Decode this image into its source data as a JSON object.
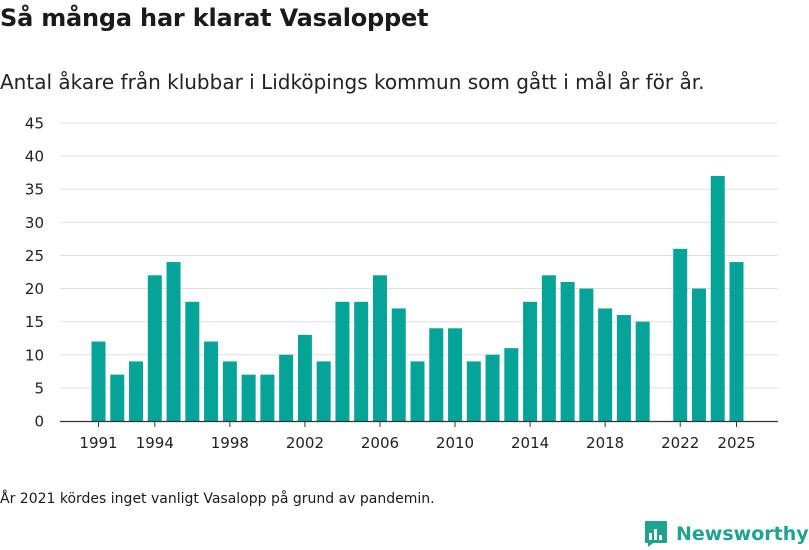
{
  "header": {
    "title": "Så många har klarat Vasaloppet",
    "subtitle": "Antal åkare från klubbar i Lidköpings kommun som gått i mål år för år."
  },
  "footnote": "År 2021 kördes inget vanligt Vasalopp på grund av pandemin.",
  "brand": {
    "name": "Newsworthy",
    "icon": "newsworthy-logo-icon",
    "color": "#1fa391"
  },
  "colors": {
    "bar": "#06a398",
    "grid": "#e0e0e0",
    "axis": "#333333"
  },
  "chart_data": {
    "type": "bar",
    "title": "Så många har klarat Vasaloppet",
    "subtitle": "Antal åkare från klubbar i Lidköpings kommun som gått i mål år för år.",
    "xlabel": "",
    "ylabel": "",
    "ylim": [
      0,
      45
    ],
    "yticks": [
      0,
      5,
      10,
      15,
      20,
      25,
      30,
      35,
      40,
      45
    ],
    "xticks": [
      1991,
      1994,
      1998,
      2002,
      2006,
      2010,
      2014,
      2018,
      2022,
      2025
    ],
    "x_range": [
      1991,
      2025
    ],
    "grid": true,
    "series": [
      {
        "name": "Antal åkare",
        "points": [
          {
            "year": 1991,
            "value": 12
          },
          {
            "year": 1992,
            "value": 7
          },
          {
            "year": 1993,
            "value": 9
          },
          {
            "year": 1994,
            "value": 22
          },
          {
            "year": 1995,
            "value": 24
          },
          {
            "year": 1996,
            "value": 18
          },
          {
            "year": 1997,
            "value": 12
          },
          {
            "year": 1998,
            "value": 9
          },
          {
            "year": 1999,
            "value": 7
          },
          {
            "year": 2000,
            "value": 7
          },
          {
            "year": 2001,
            "value": 10
          },
          {
            "year": 2002,
            "value": 13
          },
          {
            "year": 2003,
            "value": 9
          },
          {
            "year": 2004,
            "value": 18
          },
          {
            "year": 2005,
            "value": 18
          },
          {
            "year": 2006,
            "value": 22
          },
          {
            "year": 2007,
            "value": 17
          },
          {
            "year": 2008,
            "value": 9
          },
          {
            "year": 2009,
            "value": 14
          },
          {
            "year": 2010,
            "value": 14
          },
          {
            "year": 2011,
            "value": 9
          },
          {
            "year": 2012,
            "value": 10
          },
          {
            "year": 2013,
            "value": 11
          },
          {
            "year": 2014,
            "value": 18
          },
          {
            "year": 2015,
            "value": 22
          },
          {
            "year": 2016,
            "value": 21
          },
          {
            "year": 2017,
            "value": 20
          },
          {
            "year": 2018,
            "value": 17
          },
          {
            "year": 2019,
            "value": 16
          },
          {
            "year": 2020,
            "value": 15
          },
          {
            "year": 2022,
            "value": 26
          },
          {
            "year": 2023,
            "value": 20
          },
          {
            "year": 2024,
            "value": 37
          },
          {
            "year": 2025,
            "value": 24
          }
        ]
      }
    ]
  }
}
